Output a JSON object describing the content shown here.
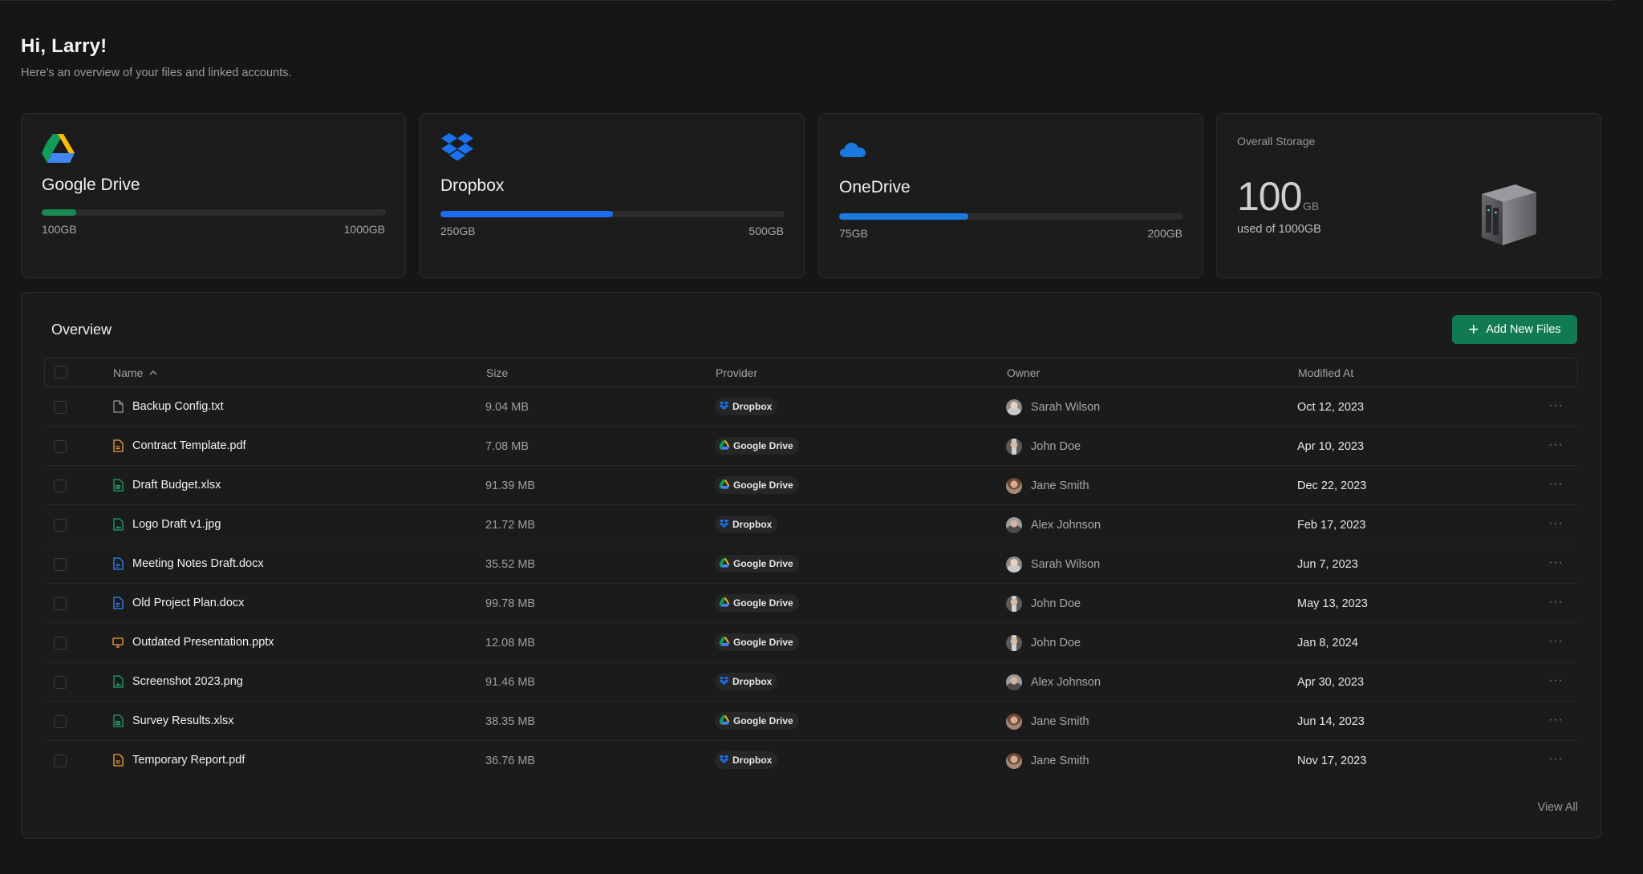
{
  "header": {
    "greeting": "Hi, Larry!",
    "subtitle": "Here’s an overview of your files and linked accounts."
  },
  "accounts": [
    {
      "name": "Google Drive",
      "used_label": "100GB",
      "total_label": "1000GB",
      "used_fraction": 0.1,
      "bar_color": "#1a8a55",
      "icon": "google-drive-icon"
    },
    {
      "name": "Dropbox",
      "used_label": "250GB",
      "total_label": "500GB",
      "used_fraction": 0.5,
      "bar_color": "#1a6cf0",
      "icon": "dropbox-icon"
    },
    {
      "name": "OneDrive",
      "used_label": "75GB",
      "total_label": "200GB",
      "used_fraction": 0.375,
      "bar_color": "#1b7ae0",
      "icon": "onedrive-icon"
    }
  ],
  "storage": {
    "label": "Overall Storage",
    "value": "100",
    "unit": "GB",
    "subtext": "used of 1000GB",
    "icon": "server-icon"
  },
  "overview": {
    "title": "Overview",
    "add_button": "Add New Files",
    "columns": [
      "Name",
      "Size",
      "Provider",
      "Owner",
      "Modified At"
    ],
    "view_all": "View All",
    "more_label": "···",
    "rows": [
      {
        "name": "Backup Config.txt",
        "type": "text",
        "size": "9.04 MB",
        "provider": "Dropbox",
        "owner": "Sarah Wilson",
        "modified": "Oct 12, 2023"
      },
      {
        "name": "Contract Template.pdf",
        "type": "pdf",
        "size": "7.08 MB",
        "provider": "Google Drive",
        "owner": "John Doe",
        "modified": "Apr 10, 2023"
      },
      {
        "name": "Draft Budget.xlsx",
        "type": "sheet",
        "size": "91.39 MB",
        "provider": "Google Drive",
        "owner": "Jane Smith",
        "modified": "Dec 22, 2023"
      },
      {
        "name": "Logo Draft v1.jpg",
        "type": "image",
        "size": "21.72 MB",
        "provider": "Dropbox",
        "owner": "Alex Johnson",
        "modified": "Feb 17, 2023"
      },
      {
        "name": "Meeting Notes Draft.docx",
        "type": "doc",
        "size": "35.52 MB",
        "provider": "Google Drive",
        "owner": "Sarah Wilson",
        "modified": "Jun 7, 2023"
      },
      {
        "name": "Old Project Plan.docx",
        "type": "doc",
        "size": "99.78 MB",
        "provider": "Google Drive",
        "owner": "John Doe",
        "modified": "May 13, 2023"
      },
      {
        "name": "Outdated Presentation.pptx",
        "type": "slides",
        "size": "12.08 MB",
        "provider": "Google Drive",
        "owner": "John Doe",
        "modified": "Jan 8, 2024"
      },
      {
        "name": "Screenshot 2023.png",
        "type": "image",
        "size": "91.46 MB",
        "provider": "Dropbox",
        "owner": "Alex Johnson",
        "modified": "Apr 30, 2023"
      },
      {
        "name": "Survey Results.xlsx",
        "type": "sheet",
        "size": "38.35 MB",
        "provider": "Google Drive",
        "owner": "Jane Smith",
        "modified": "Jun 14, 2023"
      },
      {
        "name": "Temporary Report.pdf",
        "type": "pdf",
        "size": "36.76 MB",
        "provider": "Dropbox",
        "owner": "Jane Smith",
        "modified": "Nov 17, 2023"
      }
    ]
  }
}
